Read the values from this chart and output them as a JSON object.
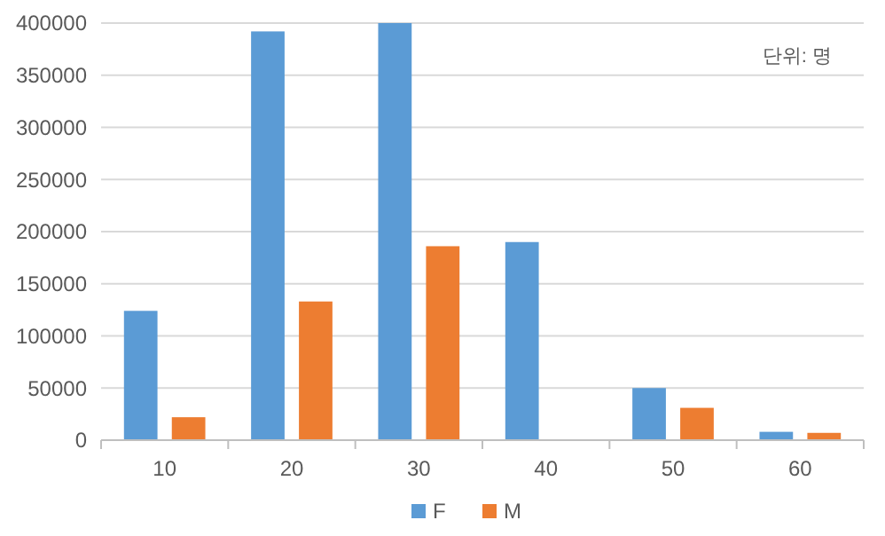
{
  "chart_data": {
    "type": "bar",
    "categories": [
      "10",
      "20",
      "30",
      "40",
      "50",
      "60"
    ],
    "series": [
      {
        "name": "F",
        "color": "#5b9bd5",
        "values": [
          124000,
          392000,
          400000,
          190000,
          50000,
          8000
        ]
      },
      {
        "name": "M",
        "color": "#ed7d31",
        "values": [
          22000,
          133000,
          186000,
          0,
          31000,
          7000
        ]
      }
    ],
    "ylim": [
      0,
      400000
    ],
    "yticks": [
      0,
      50000,
      100000,
      150000,
      200000,
      250000,
      300000,
      350000,
      400000
    ],
    "grid": "y",
    "legend": "bottom",
    "annotations": [
      "단위: 명"
    ]
  }
}
